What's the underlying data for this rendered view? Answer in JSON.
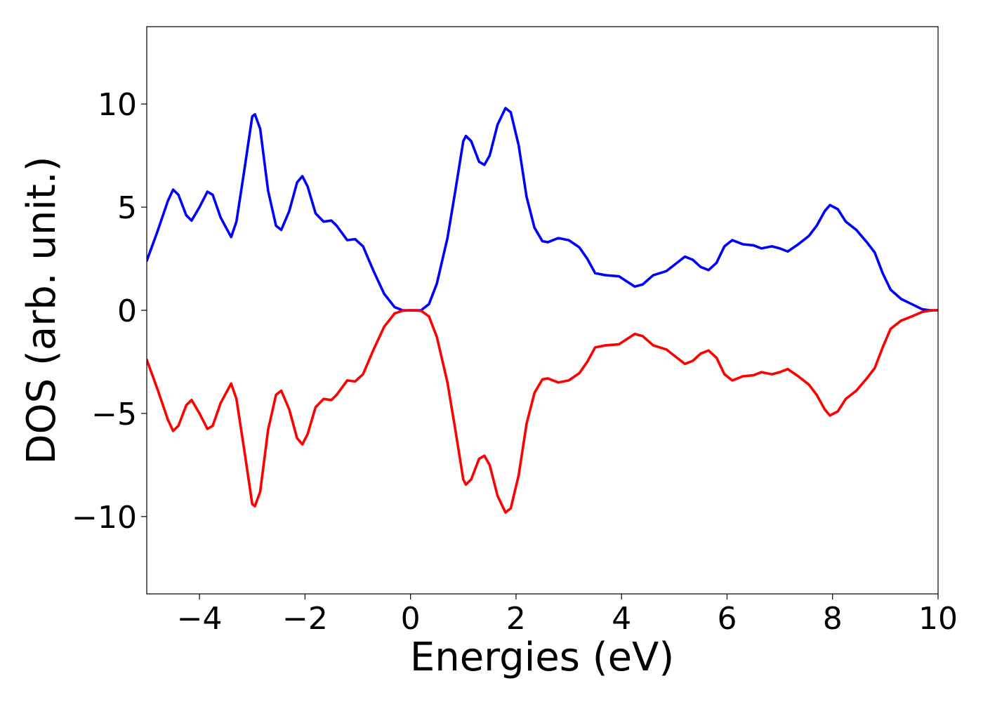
{
  "chart_data": {
    "type": "line",
    "x_label": "Energies (eV)",
    "y_label": "DOS (arb. unit.)",
    "xlim": [
      -5,
      10
    ],
    "ylim": [
      -13.75,
      13.75
    ],
    "xticks": [
      {
        "value": -4,
        "label": "−4"
      },
      {
        "value": -2,
        "label": "−2"
      },
      0,
      2,
      4,
      6,
      8,
      10
    ],
    "yticks": [
      {
        "value": -10,
        "label": "−10"
      },
      {
        "value": -5,
        "label": "−5"
      },
      0,
      5,
      10
    ],
    "grid": false,
    "x": [
      -5,
      -4.8,
      -4.6,
      -4.5,
      -4.4,
      -4.25,
      -4.15,
      -4.0,
      -3.85,
      -3.75,
      -3.6,
      -3.4,
      -3.3,
      -3.15,
      -3.0,
      -2.95,
      -2.85,
      -2.7,
      -2.55,
      -2.45,
      -2.3,
      -2.15,
      -2.05,
      -1.95,
      -1.8,
      -1.65,
      -1.5,
      -1.4,
      -1.2,
      -1.05,
      -0.9,
      -0.7,
      -0.5,
      -0.3,
      -0.15,
      0,
      0.2,
      0.35,
      0.5,
      0.7,
      0.85,
      1.0,
      1.05,
      1.15,
      1.3,
      1.4,
      1.5,
      1.65,
      1.8,
      1.9,
      2.05,
      2.2,
      2.35,
      2.5,
      2.6,
      2.8,
      3.0,
      3.2,
      3.35,
      3.5,
      3.7,
      3.95,
      4.1,
      4.25,
      4.4,
      4.6,
      4.85,
      5.0,
      5.2,
      5.35,
      5.5,
      5.65,
      5.8,
      5.95,
      6.1,
      6.3,
      6.5,
      6.65,
      6.85,
      7.0,
      7.15,
      7.35,
      7.55,
      7.7,
      7.85,
      7.95,
      8.1,
      8.25,
      8.45,
      8.65,
      8.8,
      8.95,
      9.1,
      9.3,
      9.5,
      9.7,
      9.85,
      10
    ],
    "series": [
      {
        "color": "#0000ff",
        "values": [
          2.4,
          3.8,
          5.3,
          5.85,
          5.6,
          4.6,
          4.35,
          5.0,
          5.75,
          5.6,
          4.5,
          3.55,
          4.3,
          6.8,
          9.4,
          9.5,
          8.8,
          5.8,
          4.1,
          3.9,
          4.8,
          6.2,
          6.5,
          6.0,
          4.7,
          4.3,
          4.35,
          4.1,
          3.4,
          3.45,
          3.1,
          1.9,
          0.8,
          0.15,
          0.0,
          0,
          0.0,
          0.3,
          1.3,
          3.5,
          5.8,
          8.2,
          8.45,
          8.2,
          7.2,
          7.05,
          7.5,
          9.0,
          9.8,
          9.6,
          8.0,
          5.5,
          4.0,
          3.35,
          3.3,
          3.5,
          3.4,
          3.05,
          2.5,
          1.8,
          1.7,
          1.65,
          1.4,
          1.15,
          1.25,
          1.7,
          1.9,
          2.2,
          2.6,
          2.45,
          2.1,
          1.95,
          2.3,
          3.1,
          3.4,
          3.2,
          3.15,
          3.0,
          3.1,
          3.0,
          2.85,
          3.2,
          3.6,
          4.1,
          4.8,
          5.1,
          4.9,
          4.3,
          3.9,
          3.3,
          2.8,
          1.8,
          1.0,
          0.55,
          0.3,
          0.05,
          0,
          0
        ]
      },
      {
        "color": "#ff0000",
        "values": [
          -2.4,
          -3.8,
          -5.3,
          -5.85,
          -5.6,
          -4.6,
          -4.35,
          -5.0,
          -5.75,
          -5.6,
          -4.5,
          -3.55,
          -4.3,
          -6.8,
          -9.4,
          -9.5,
          -8.8,
          -5.8,
          -4.1,
          -3.9,
          -4.8,
          -6.2,
          -6.5,
          -6.0,
          -4.7,
          -4.3,
          -4.35,
          -4.1,
          -3.4,
          -3.45,
          -3.1,
          -1.9,
          -0.8,
          -0.15,
          -0.02,
          0,
          -0.02,
          -0.3,
          -1.3,
          -3.5,
          -5.8,
          -8.2,
          -8.45,
          -8.2,
          -7.2,
          -7.05,
          -7.5,
          -9.0,
          -9.8,
          -9.6,
          -8.0,
          -5.5,
          -4.0,
          -3.35,
          -3.3,
          -3.5,
          -3.4,
          -3.05,
          -2.5,
          -1.8,
          -1.7,
          -1.65,
          -1.4,
          -1.15,
          -1.25,
          -1.7,
          -1.9,
          -2.2,
          -2.6,
          -2.45,
          -2.1,
          -1.95,
          -2.3,
          -3.1,
          -3.4,
          -3.2,
          -3.15,
          -3.0,
          -3.1,
          -3.0,
          -2.85,
          -3.2,
          -3.6,
          -4.1,
          -4.8,
          -5.1,
          -4.9,
          -4.3,
          -3.9,
          -3.3,
          -2.8,
          -1.8,
          -0.9,
          -0.5,
          -0.3,
          -0.08,
          -0.01,
          0
        ]
      }
    ]
  }
}
